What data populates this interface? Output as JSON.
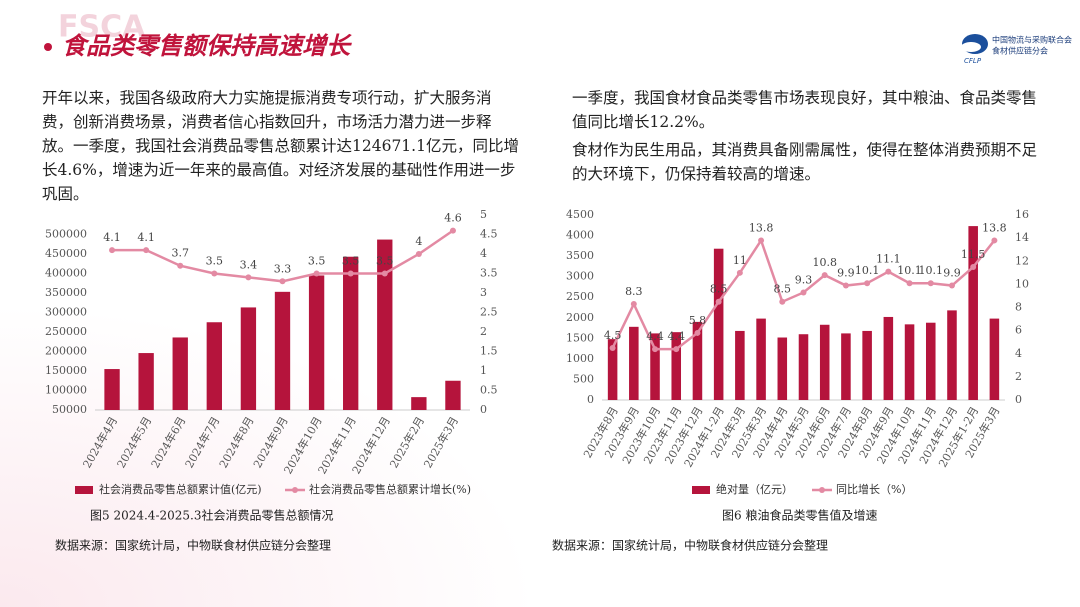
{
  "header": {
    "title": "食品类零售额保持高速增长",
    "watermark": "FSCA",
    "logo_org": "中国物流与采购联合会",
    "logo_branch": "食材供应链分会",
    "logo_abbr": "CFLP"
  },
  "text": {
    "left": [
      "开年以来，我国各级政府大力实施提振消费专项行动，扩大服务消费，创新消费场景，消费者信心指数回升，市场活力潜力进一步释放。一季度，我国社会消费品零售总额累计达124671.1亿元，同比增长4.6%，增速为近一年来的最高值。对经济发展的基础性作用进一步巩固。"
    ],
    "right": [
      "一季度，我国食材食品类零售市场表现良好，其中粮油、食品类零售值同比增长12.2%。",
      "食材作为民生用品，其消费具备刚需属性，使得在整体消费预期不足的大环境下，仍保持着较高的增速。"
    ]
  },
  "chart_data": [
    {
      "type": "bar-line",
      "caption": "图5 2024.4-2025.3社会消费品零售总额情况",
      "source": "数据来源：国家统计局，中物联食材供应链分会整理",
      "categories": [
        "2024年4月",
        "2024年5月",
        "2024年6月",
        "2024年7月",
        "2024年8月",
        "2024年9月",
        "2024年10月",
        "2024年11月",
        "2024年12月",
        "2025年2月",
        "2025年3月"
      ],
      "series": [
        {
          "name": "社会消费品零售总额累计值(亿元)",
          "color": "#b5143c",
          "type": "bar",
          "values": [
            155000,
            196000,
            236000,
            275000,
            313000,
            353000,
            395000,
            443000,
            487000,
            83000,
            125000
          ]
        },
        {
          "name": "社会消费品零售总额累计增长(%)",
          "color": "#e38aa3",
          "type": "line",
          "axis": "y2",
          "values": [
            4.1,
            4.1,
            3.7,
            3.5,
            3.4,
            3.3,
            3.5,
            3.5,
            3.5,
            4,
            4.6
          ]
        }
      ],
      "ylim": [
        50000,
        550000
      ],
      "yticks": [
        50000,
        100000,
        150000,
        200000,
        250000,
        300000,
        350000,
        400000,
        450000,
        500000
      ],
      "y2lim": [
        0,
        5
      ],
      "y2ticks": [
        0,
        0.5,
        1,
        1.5,
        2,
        2.5,
        3,
        3.5,
        4,
        4.5,
        5
      ],
      "legend": "bottom"
    },
    {
      "type": "bar-line",
      "caption": "图6 粮油食品类零售值及增速",
      "source": "数据来源：国家统计局，中物联食材供应链分会整理",
      "categories": [
        "2023年8月",
        "2023年9月",
        "2023年10月",
        "2023年11月",
        "2023年12月",
        "2024年1-2月",
        "2024年3月",
        "2025年3月",
        "2024年4月",
        "2024年5月",
        "2024年6月",
        "2024年7月",
        "2024年8月",
        "2024年9月",
        "2024年10月",
        "2024年11月",
        "2024年12月",
        "2025年1-2月",
        "2025年3月"
      ],
      "series": [
        {
          "name": "绝对量（亿元）",
          "color": "#b5143c",
          "type": "bar",
          "values": [
            1480,
            1780,
            1620,
            1650,
            1900,
            3680,
            1680,
            1980,
            1520,
            1600,
            1830,
            1620,
            1680,
            2020,
            1840,
            1880,
            2180,
            4230,
            1980
          ]
        },
        {
          "name": "同比增长（%）",
          "color": "#e38aa3",
          "type": "line",
          "axis": "y2",
          "values": [
            4.5,
            8.3,
            4.4,
            4.4,
            5.8,
            8.5,
            11,
            13.8,
            8.5,
            9.3,
            10.8,
            9.9,
            10.1,
            11.1,
            10.1,
            10.1,
            9.9,
            11.5,
            13.8
          ]
        }
      ],
      "ylim": [
        0,
        4500
      ],
      "yticks": [
        0,
        500,
        1000,
        1500,
        2000,
        2500,
        3000,
        3500,
        4000,
        4500
      ],
      "y2lim": [
        0,
        16
      ],
      "y2ticks": [
        0,
        2,
        4,
        6,
        8,
        10,
        12,
        14,
        16
      ],
      "legend": "bottom"
    }
  ]
}
